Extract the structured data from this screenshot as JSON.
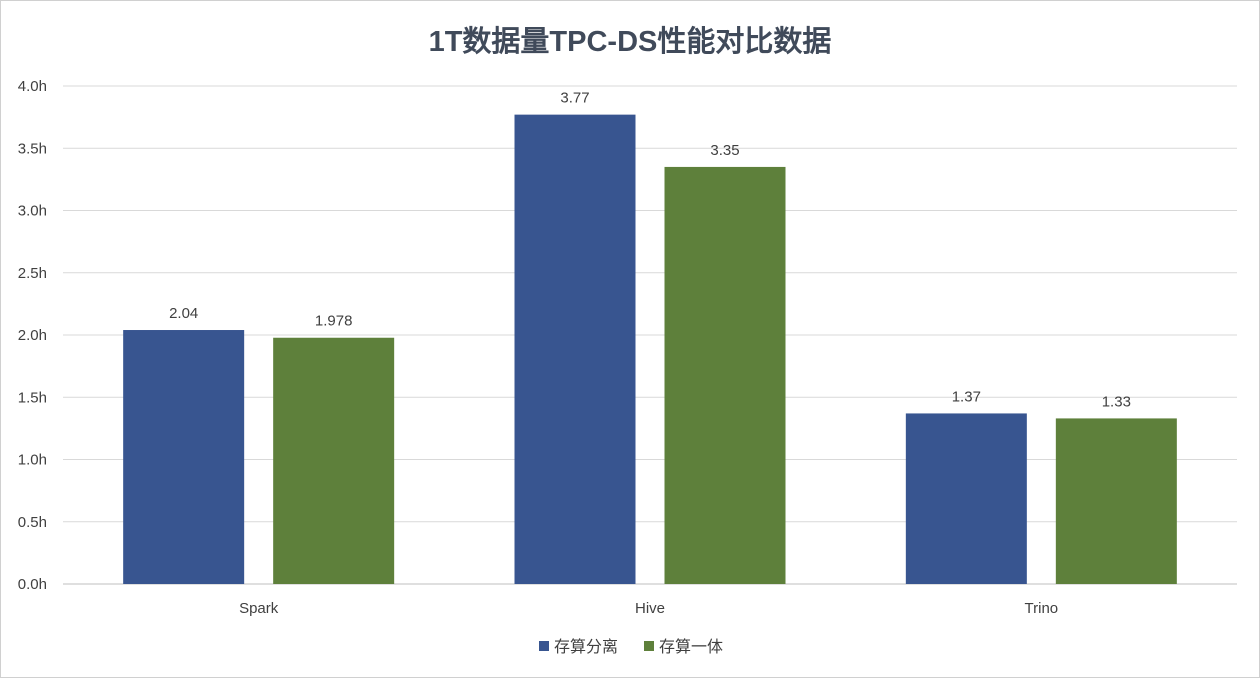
{
  "chart_data": {
    "type": "bar",
    "title": "1T数据量TPC-DS性能对比数据",
    "xlabel": "",
    "ylabel": "",
    "categories": [
      "Spark",
      "Hive",
      "Trino"
    ],
    "series": [
      {
        "name": "存算分离",
        "values": [
          2.04,
          3.77,
          1.37
        ],
        "labels": [
          "2.04",
          "3.77",
          "1.37"
        ],
        "color": "#385590"
      },
      {
        "name": "存算一体",
        "values": [
          1.978,
          3.35,
          1.33
        ],
        "labels": [
          "1.978",
          "3.35",
          "1.33"
        ],
        "color": "#5e803b"
      }
    ],
    "ylim": [
      0,
      4
    ],
    "yticks": [
      0,
      0.5,
      1,
      1.5,
      2,
      2.5,
      3,
      3.5,
      4
    ],
    "ytick_labels": [
      "0.0h",
      "0.5h",
      "1.0h",
      "1.5h",
      "2.0h",
      "2.5h",
      "3.0h",
      "3.5h",
      "4.0h"
    ],
    "grid": true,
    "legend_position": "bottom-center"
  }
}
